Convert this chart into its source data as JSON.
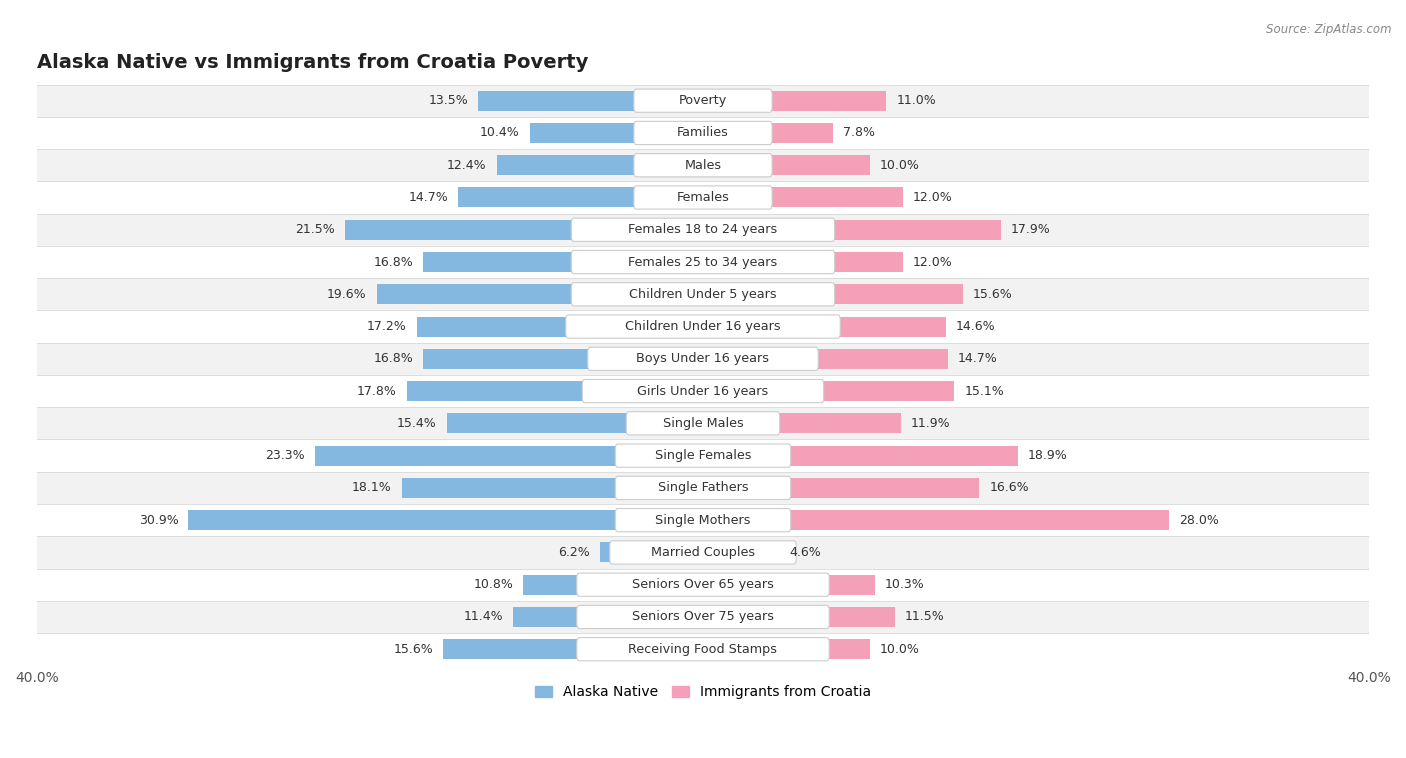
{
  "title": "Alaska Native vs Immigrants from Croatia Poverty",
  "source": "Source: ZipAtlas.com",
  "categories": [
    "Poverty",
    "Families",
    "Males",
    "Females",
    "Females 18 to 24 years",
    "Females 25 to 34 years",
    "Children Under 5 years",
    "Children Under 16 years",
    "Boys Under 16 years",
    "Girls Under 16 years",
    "Single Males",
    "Single Females",
    "Single Fathers",
    "Single Mothers",
    "Married Couples",
    "Seniors Over 65 years",
    "Seniors Over 75 years",
    "Receiving Food Stamps"
  ],
  "alaska_native": [
    13.5,
    10.4,
    12.4,
    14.7,
    21.5,
    16.8,
    19.6,
    17.2,
    16.8,
    17.8,
    15.4,
    23.3,
    18.1,
    30.9,
    6.2,
    10.8,
    11.4,
    15.6
  ],
  "immigrants_croatia": [
    11.0,
    7.8,
    10.0,
    12.0,
    17.9,
    12.0,
    15.6,
    14.6,
    14.7,
    15.1,
    11.9,
    18.9,
    16.6,
    28.0,
    4.6,
    10.3,
    11.5,
    10.0
  ],
  "alaska_color": "#85b8e0",
  "croatia_color": "#f4a0b8",
  "alaska_label": "Alaska Native",
  "croatia_label": "Immigrants from Croatia",
  "axis_max": 40.0,
  "bar_height": 0.62,
  "bg_color": "#ffffff",
  "row_bg_even": "#f2f2f2",
  "row_bg_odd": "#ffffff",
  "label_font_size": 9.2,
  "value_font_size": 9.0,
  "title_font_size": 14
}
